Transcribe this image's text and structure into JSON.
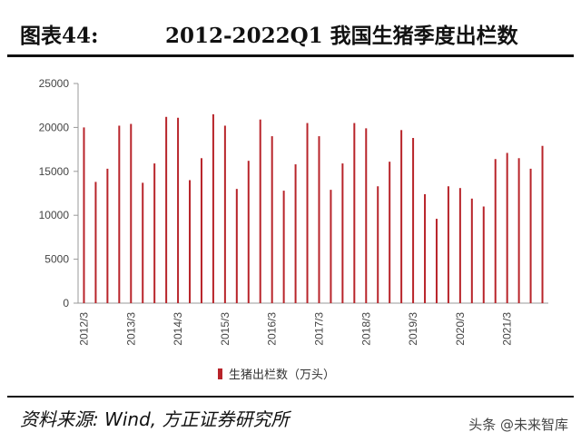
{
  "header": {
    "figure_label": "图表44:",
    "title": "2012-2022Q1 我国生猪季度出栏数"
  },
  "footer": {
    "source": "资料来源: Wind, 方正证券研究所",
    "watermark": "头条 @未来智库"
  },
  "chart_data": {
    "type": "bar",
    "title": "2012-2022Q1 我国生猪季度出栏数",
    "ylim": [
      0,
      25000
    ],
    "yticks": [
      0,
      5000,
      10000,
      15000,
      20000,
      25000
    ],
    "xtick_labels": [
      "2012/3",
      "2013/3",
      "2014/3",
      "2015/3",
      "2016/3",
      "2017/3",
      "2018/3",
      "2019/3",
      "2020/3",
      "2021/3"
    ],
    "color": "#b8242a",
    "grid": false,
    "legend_position": "bottom",
    "series": [
      {
        "name": "生猪出栏数（万头）",
        "values": [
          20000,
          13800,
          15300,
          20200,
          20400,
          13700,
          15900,
          21200,
          21100,
          14000,
          16500,
          21500,
          20200,
          13000,
          16200,
          20900,
          19000,
          12800,
          15800,
          20500,
          19000,
          12900,
          15900,
          20500,
          19900,
          13300,
          16100,
          19700,
          18800,
          12400,
          9600,
          13300,
          13100,
          11900,
          11000,
          16400,
          17100,
          16500,
          15300,
          17900
        ]
      }
    ]
  }
}
